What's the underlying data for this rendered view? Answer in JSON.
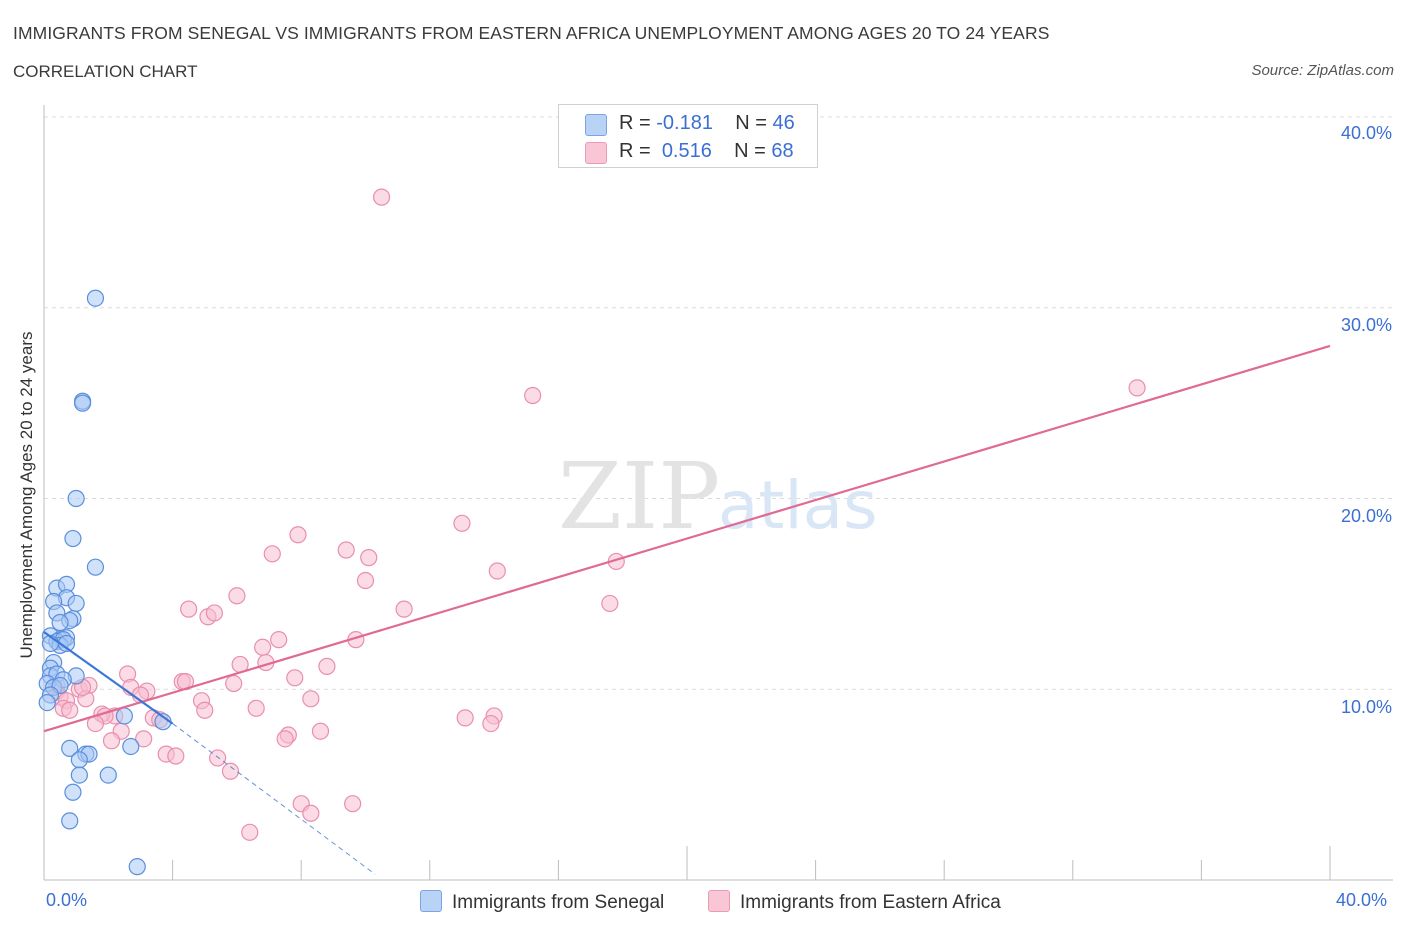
{
  "title": "IMMIGRANTS FROM SENEGAL VS IMMIGRANTS FROM EASTERN AFRICA UNEMPLOYMENT AMONG AGES 20 TO 24 YEARS",
  "subtitle": "CORRELATION CHART",
  "source": "Source: ZipAtlas.com",
  "watermark": {
    "zip": "ZIP",
    "atlas": "atlas"
  },
  "colors": {
    "senegal_fill": "#a9c8f5",
    "senegal_stroke": "#5b8fdc",
    "senegal_line": "#3a78d8",
    "eastern_fill": "#f7bdd0",
    "eastern_stroke": "#e98fae",
    "eastern_line": "#e06a94",
    "grid": "#dcdcdc",
    "tick_text": "#3b6fd4"
  },
  "legend": {
    "rows": [
      {
        "r_label": "R =",
        "r_value": "-0.181",
        "n_label": "N =",
        "n_value": "46"
      },
      {
        "r_label": "R =",
        "r_value": "0.516",
        "n_label": "N =",
        "n_value": "68"
      }
    ]
  },
  "bottom_legend": [
    "Immigrants from Senegal",
    "Immigrants from Eastern Africa"
  ],
  "chart_data": {
    "type": "scatter",
    "title": "IMMIGRANTS FROM SENEGAL VS IMMIGRANTS FROM EASTERN AFRICA UNEMPLOYMENT AMONG AGES 20 TO 24 YEARS",
    "xlabel": "",
    "ylabel": "Unemployment Among Ages 20 to 24 years",
    "xlim": [
      0,
      40
    ],
    "ylim": [
      0,
      40
    ],
    "x_tick_labels": [
      "0.0%",
      "40.0%"
    ],
    "y_ticks": [
      10,
      20,
      30,
      40
    ],
    "y_tick_labels": [
      "10.0%",
      "20.0%",
      "30.0%",
      "40.0%"
    ],
    "grid": true,
    "series": [
      {
        "name": "Immigrants from Senegal",
        "R": -0.181,
        "N": 46,
        "trend": {
          "x": [
            0,
            4.0
          ],
          "y": [
            13.0,
            8.2
          ]
        },
        "trend_dashed": {
          "x": [
            4.0,
            10.3
          ],
          "y": [
            8.2,
            0.3
          ]
        },
        "points": [
          [
            1.6,
            30.5
          ],
          [
            1.2,
            25.1
          ],
          [
            1.2,
            25.0
          ],
          [
            1.0,
            20.0
          ],
          [
            0.9,
            17.9
          ],
          [
            1.6,
            16.4
          ],
          [
            0.4,
            15.3
          ],
          [
            0.7,
            15.5
          ],
          [
            0.7,
            14.8
          ],
          [
            0.3,
            14.6
          ],
          [
            1.0,
            14.5
          ],
          [
            0.4,
            14.0
          ],
          [
            0.9,
            13.7
          ],
          [
            0.8,
            13.6
          ],
          [
            0.5,
            13.5
          ],
          [
            0.2,
            12.8
          ],
          [
            0.5,
            12.6
          ],
          [
            0.7,
            12.7
          ],
          [
            0.4,
            12.5
          ],
          [
            0.6,
            12.6
          ],
          [
            0.5,
            12.3
          ],
          [
            0.2,
            12.4
          ],
          [
            0.7,
            12.4
          ],
          [
            0.3,
            11.4
          ],
          [
            0.2,
            11.1
          ],
          [
            0.2,
            10.7
          ],
          [
            0.4,
            10.8
          ],
          [
            1.0,
            10.7
          ],
          [
            0.6,
            10.5
          ],
          [
            0.1,
            10.3
          ],
          [
            0.3,
            10.1
          ],
          [
            0.5,
            10.2
          ],
          [
            0.2,
            9.7
          ],
          [
            0.1,
            9.3
          ],
          [
            2.5,
            8.6
          ],
          [
            3.7,
            8.3
          ],
          [
            0.8,
            6.9
          ],
          [
            1.3,
            6.6
          ],
          [
            1.4,
            6.6
          ],
          [
            1.1,
            6.3
          ],
          [
            2.7,
            7.0
          ],
          [
            1.1,
            5.5
          ],
          [
            2.0,
            5.5
          ],
          [
            0.9,
            4.6
          ],
          [
            0.8,
            3.1
          ],
          [
            2.9,
            0.7
          ]
        ]
      },
      {
        "name": "Immigrants from Eastern Africa",
        "R": 0.516,
        "N": 68,
        "trend": {
          "x": [
            0,
            40
          ],
          "y": [
            7.8,
            28.0
          ]
        },
        "points": [
          [
            10.5,
            35.8
          ],
          [
            15.2,
            25.4
          ],
          [
            34.0,
            25.8
          ],
          [
            13.0,
            18.7
          ],
          [
            7.9,
            18.1
          ],
          [
            17.8,
            16.7
          ],
          [
            7.1,
            17.1
          ],
          [
            9.4,
            17.3
          ],
          [
            10.1,
            16.9
          ],
          [
            14.1,
            16.2
          ],
          [
            10.0,
            15.7
          ],
          [
            6.0,
            14.9
          ],
          [
            4.5,
            14.2
          ],
          [
            5.1,
            13.8
          ],
          [
            5.3,
            14.0
          ],
          [
            11.2,
            14.2
          ],
          [
            17.6,
            14.5
          ],
          [
            9.7,
            12.6
          ],
          [
            7.3,
            12.6
          ],
          [
            6.8,
            12.2
          ],
          [
            6.9,
            11.4
          ],
          [
            6.1,
            11.3
          ],
          [
            8.8,
            11.2
          ],
          [
            2.6,
            10.8
          ],
          [
            7.8,
            10.6
          ],
          [
            4.3,
            10.4
          ],
          [
            4.4,
            10.4
          ],
          [
            5.9,
            10.3
          ],
          [
            2.7,
            10.1
          ],
          [
            1.1,
            10.0
          ],
          [
            1.4,
            10.2
          ],
          [
            3.2,
            9.9
          ],
          [
            3.0,
            9.7
          ],
          [
            0.4,
            9.9
          ],
          [
            0.5,
            9.6
          ],
          [
            1.3,
            9.5
          ],
          [
            8.3,
            9.5
          ],
          [
            4.9,
            9.4
          ],
          [
            0.7,
            9.4
          ],
          [
            0.6,
            9.0
          ],
          [
            0.8,
            8.9
          ],
          [
            5.0,
            8.9
          ],
          [
            6.6,
            9.0
          ],
          [
            2.2,
            8.6
          ],
          [
            1.8,
            8.7
          ],
          [
            1.9,
            8.6
          ],
          [
            3.4,
            8.5
          ],
          [
            3.6,
            8.4
          ],
          [
            13.1,
            8.5
          ],
          [
            14.0,
            8.6
          ],
          [
            13.9,
            8.2
          ],
          [
            1.6,
            8.2
          ],
          [
            2.4,
            7.8
          ],
          [
            8.6,
            7.8
          ],
          [
            7.6,
            7.6
          ],
          [
            7.5,
            7.4
          ],
          [
            3.1,
            7.4
          ],
          [
            2.1,
            7.3
          ],
          [
            3.8,
            6.6
          ],
          [
            4.1,
            6.5
          ],
          [
            5.4,
            6.4
          ],
          [
            5.8,
            5.7
          ],
          [
            8.0,
            4.0
          ],
          [
            9.6,
            4.0
          ],
          [
            8.3,
            3.5
          ],
          [
            6.4,
            2.5
          ],
          [
            0.4,
            10.2
          ],
          [
            1.2,
            10.1
          ]
        ]
      }
    ]
  }
}
